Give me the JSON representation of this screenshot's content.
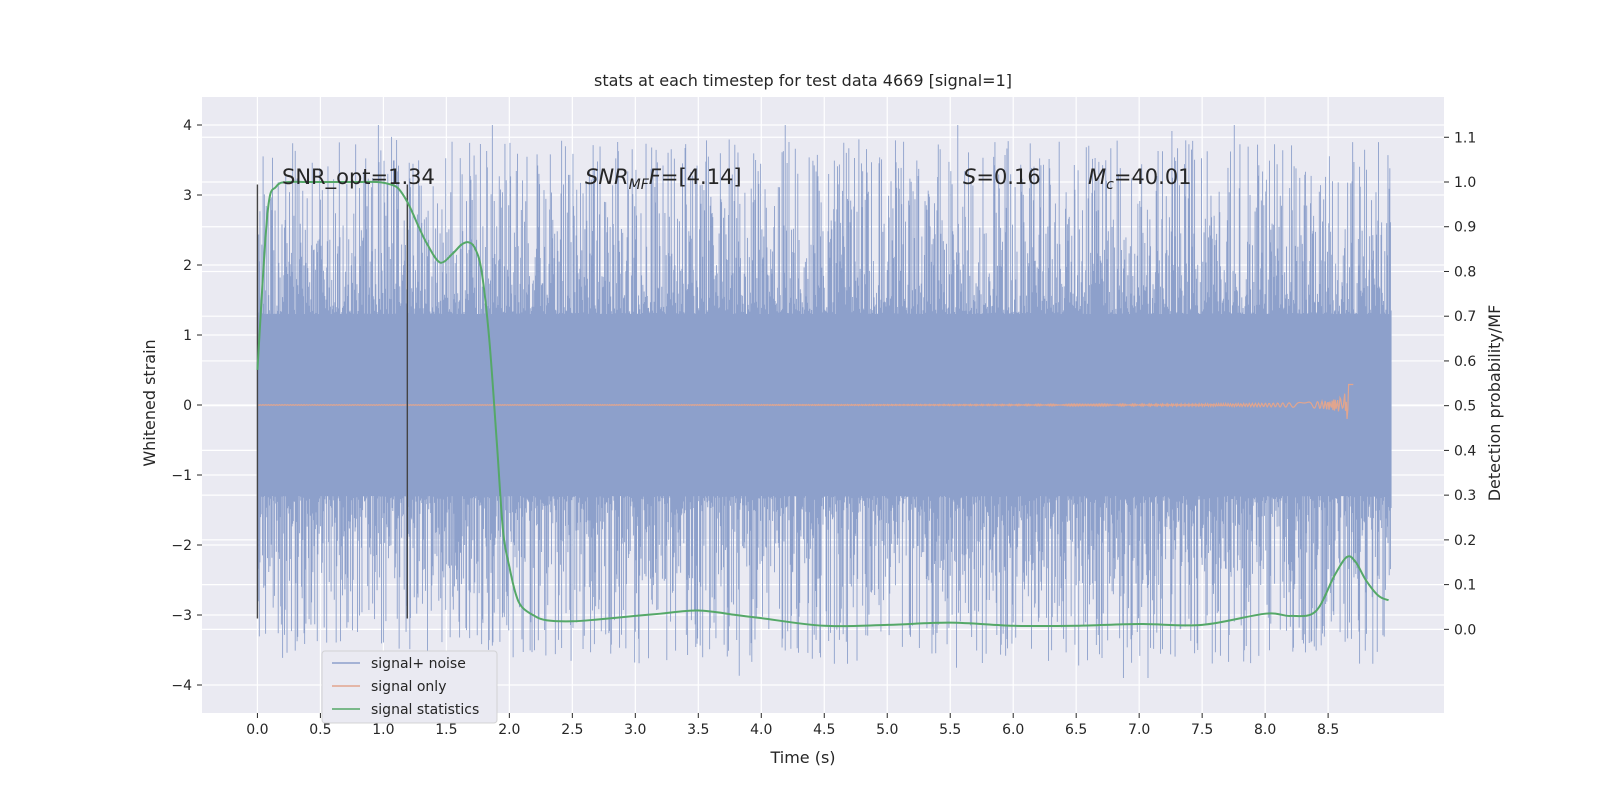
{
  "chart_data": {
    "type": "line",
    "title": "stats at each timestep for test data 4669 [signal=1]",
    "xlabel": "Time (s)",
    "ylabel": "Whitened strain",
    "ylabel_right": "Detection probability/MF",
    "xlim": [
      -0.44,
      9.42
    ],
    "ylim": [
      -4.4,
      4.4
    ],
    "ylim_right": [
      -0.187,
      1.19
    ],
    "x_ticks": [
      "0.0",
      "0.5",
      "1.0",
      "1.5",
      "2.0",
      "2.5",
      "3.0",
      "3.5",
      "4.0",
      "4.5",
      "5.0",
      "5.5",
      "6.0",
      "6.5",
      "7.0",
      "7.5",
      "8.0",
      "8.5"
    ],
    "y_ticks": [
      "4",
      "3",
      "2",
      "1",
      "0",
      "−1",
      "−2",
      "−3",
      "−4"
    ],
    "y_ticks_right": [
      "1.1",
      "1.0",
      "0.9",
      "0.8",
      "0.7",
      "0.6",
      "0.5",
      "0.4",
      "0.3",
      "0.2",
      "0.1",
      "0.0"
    ],
    "grid": true,
    "legend_position": "lower-left",
    "colors": {
      "background": "#eaeaf2",
      "grid": "#ffffff",
      "noise": "#8da0cb",
      "signal": "#e1a58e",
      "stats": "#55a868",
      "vline": "#444444"
    },
    "series": [
      {
        "name": "signal+ noise",
        "description_values": "dense whitened strain samples between roughly -3.9 and 4.0, t=0 to 9.0 s",
        "x_range": [
          0.0,
          9.0
        ],
        "envelope": [
          -3.9,
          4.0
        ]
      },
      {
        "name": "signal only",
        "x_range": [
          0.0,
          8.7
        ],
        "peak_time": 8.68,
        "peak_amplitude": 0.3
      },
      {
        "name": "signal statistics",
        "axis": "right",
        "x": [
          0.0,
          0.08,
          0.15,
          0.25,
          0.4,
          0.6,
          0.8,
          0.95,
          1.05,
          1.12,
          1.2,
          1.28,
          1.35,
          1.45,
          1.55,
          1.62,
          1.68,
          1.73,
          1.78,
          1.84,
          1.9,
          1.95,
          2.0,
          2.05,
          2.1,
          2.2,
          2.3,
          2.5,
          2.7,
          3.0,
          3.2,
          3.5,
          3.8,
          4.0,
          4.5,
          5.0,
          5.5,
          6.0,
          6.5,
          7.0,
          7.5,
          8.0,
          8.2,
          8.4,
          8.55,
          8.65,
          8.72,
          8.8,
          8.9,
          8.98
        ],
        "values": [
          0.58,
          0.93,
          0.99,
          1.0,
          1.0,
          1.0,
          1.0,
          1.0,
          0.995,
          0.985,
          0.95,
          0.9,
          0.86,
          0.82,
          0.84,
          0.86,
          0.865,
          0.85,
          0.8,
          0.65,
          0.42,
          0.22,
          0.14,
          0.08,
          0.05,
          0.03,
          0.02,
          0.018,
          0.022,
          0.03,
          0.035,
          0.042,
          0.032,
          0.025,
          0.008,
          0.01,
          0.015,
          0.008,
          0.008,
          0.012,
          0.01,
          0.035,
          0.03,
          0.04,
          0.12,
          0.162,
          0.15,
          0.11,
          0.075,
          0.065
        ]
      }
    ],
    "vlines": [
      {
        "x": 0.0,
        "y_range": [
          -3.05,
          3.15
        ]
      },
      {
        "x": 1.19,
        "y_range": [
          -3.05,
          3.15
        ]
      }
    ],
    "annotations": {
      "snr_opt": "SNR_opt=1.34",
      "snr_mf_main": "SNR",
      "snr_mf_sub": "MF",
      "snr_mf_rest": "=[4.14]",
      "s_main": "S",
      "s_rest": "=0.16",
      "mc_main": "M",
      "mc_sub": "c",
      "mc_rest": "=40.01"
    },
    "legend": [
      "signal+ noise",
      "signal only",
      "signal statistics"
    ]
  }
}
